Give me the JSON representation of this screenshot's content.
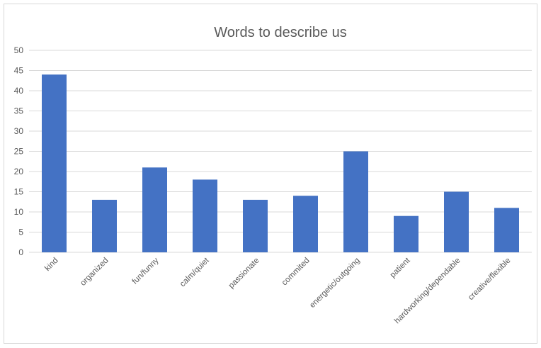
{
  "chart_data": {
    "type": "bar",
    "title": "Words to describe us",
    "xlabel": "",
    "ylabel": "",
    "categories": [
      "kind",
      "organized",
      "fun/funny",
      "calm/quiet",
      "passionate",
      "commited",
      "energetic/outgoing",
      "patient",
      "hardworking/dependable",
      "creative/flexible"
    ],
    "values": [
      44,
      13,
      21,
      18,
      13,
      14,
      25,
      9,
      15,
      11
    ],
    "ylim": [
      0,
      50
    ],
    "yticks": [
      "0",
      "5",
      "10",
      "15",
      "20",
      "25",
      "30",
      "35",
      "40",
      "45",
      "50"
    ],
    "grid": true,
    "legend": "none",
    "colors": {
      "bar": "#4472c4",
      "grid": "#d9d9d9",
      "text": "#595959"
    }
  }
}
